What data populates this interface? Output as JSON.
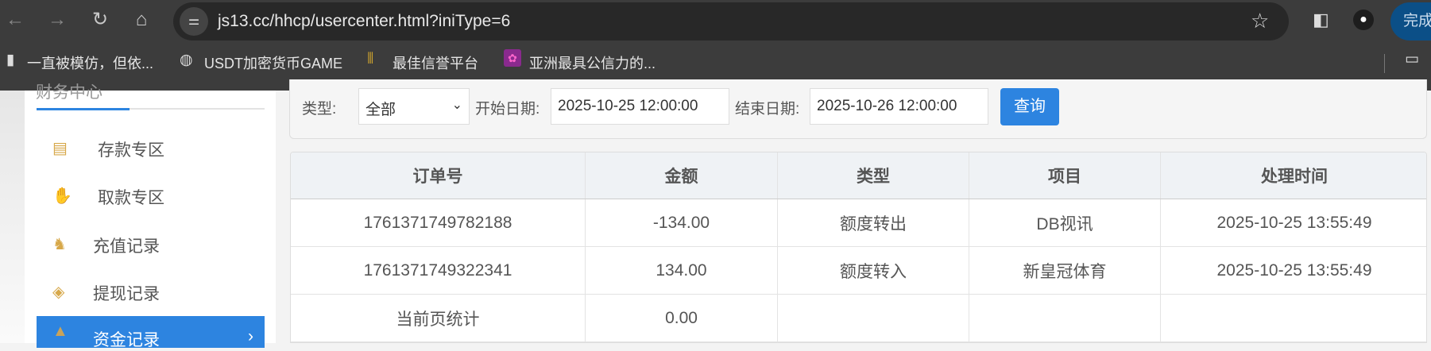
{
  "browser": {
    "url": "js13.cc/hhcp/usercenter.html?iniType=6",
    "done_label": "完成",
    "bookmarks": [
      {
        "label": "一直被模仿，但依...",
        "icon": "file-icon"
      },
      {
        "label": "USDT加密货币GAME",
        "icon": "globe-icon"
      },
      {
        "label": "最佳信誉平台",
        "icon": "site-icon"
      },
      {
        "label": "亚洲最具公信力的...",
        "icon": "site-icon"
      }
    ]
  },
  "sidebar": {
    "title": "财务中心",
    "items": [
      {
        "label": "存款专区",
        "icon": "deposit-icon"
      },
      {
        "label": "取款专区",
        "icon": "withdraw-icon"
      },
      {
        "label": "充值记录",
        "icon": "money-bag-icon"
      },
      {
        "label": "提现记录",
        "icon": "wallet-icon"
      },
      {
        "label": "资金记录",
        "icon": "funds-icon",
        "active": true
      }
    ]
  },
  "filter": {
    "type_label": "类型:",
    "type_value": "全部",
    "start_label": "开始日期:",
    "start_value": "2025-10-25 12:00:00",
    "end_label": "结束日期:",
    "end_value": "2025-10-26 12:00:00",
    "query_label": "查询"
  },
  "table": {
    "headers": [
      "订单号",
      "金额",
      "类型",
      "项目",
      "处理时间"
    ],
    "rows": [
      [
        "1761371749782188",
        "-134.00",
        "额度转出",
        "DB视讯",
        "2025-10-25 13:55:49"
      ],
      [
        "1761371749322341",
        "134.00",
        "额度转入",
        "新皇冠体育",
        "2025-10-25 13:55:49"
      ],
      [
        "当前页统计",
        "0.00",
        "",
        "",
        ""
      ]
    ]
  },
  "colors": {
    "accent": "#2d84e0",
    "toolbar": "#3c3c3c"
  }
}
